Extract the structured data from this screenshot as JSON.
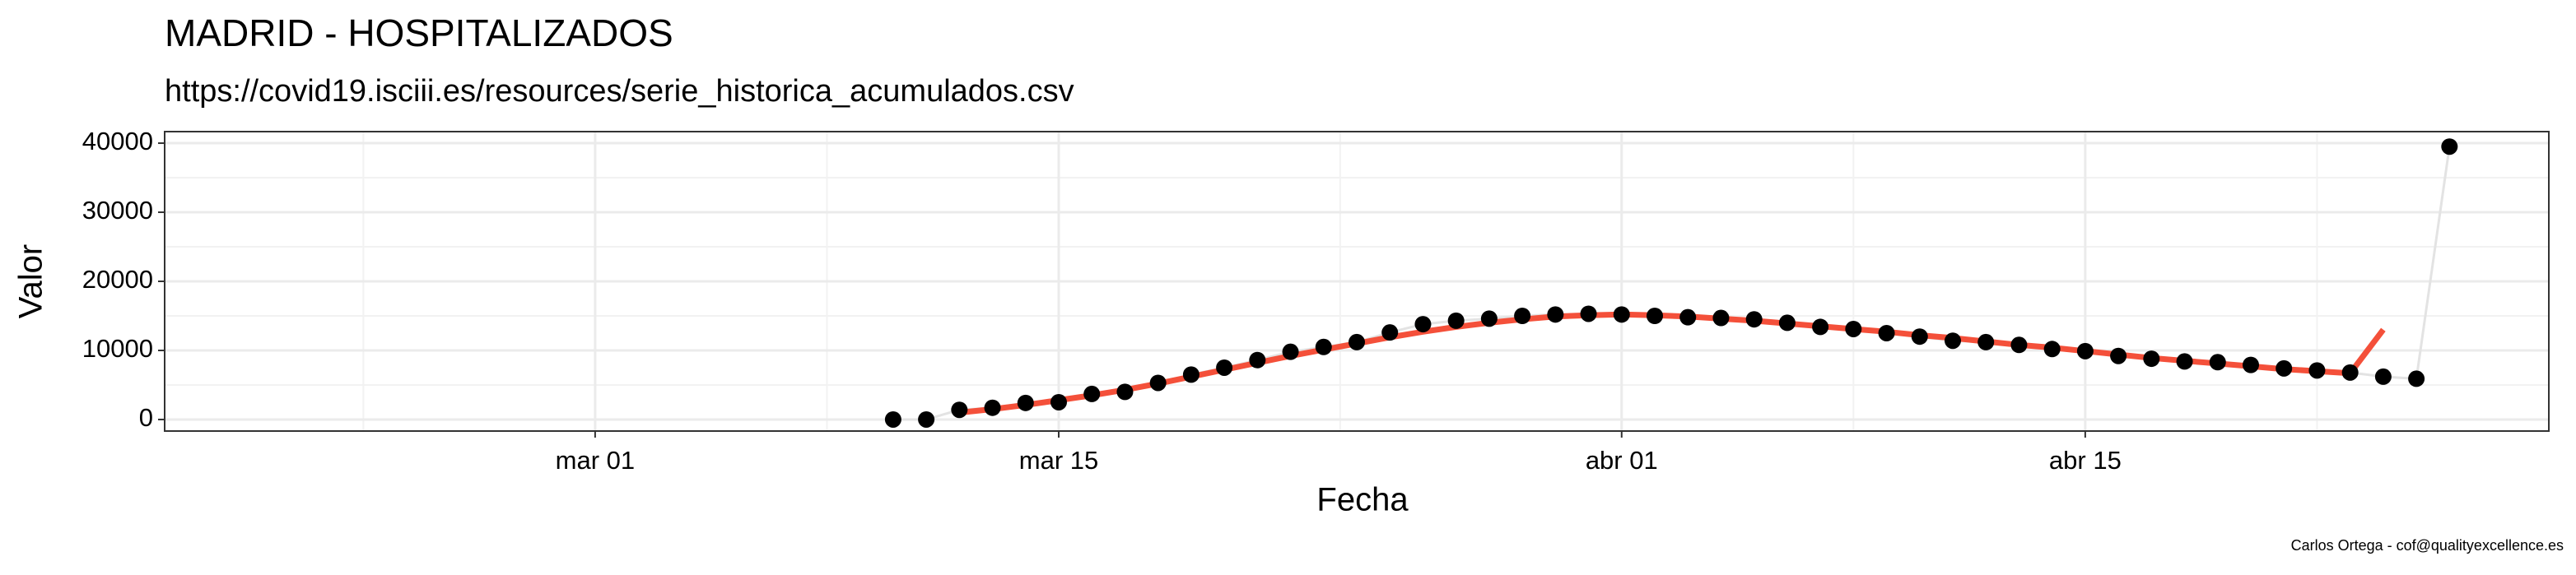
{
  "chart_data": {
    "type": "line",
    "title": "MADRID - HOSPITALIZADOS",
    "subtitle": "https://covid19.isciii.es/resources/serie_historica_acumulados.csv",
    "x_label": "Fecha",
    "y_label": "Valor",
    "caption": "Carlos Ortega - cof@qualityexcellence.es",
    "grid": true,
    "xlim": [
      "02-17",
      "04-29"
    ],
    "ylim": [
      -1670,
      41670
    ],
    "xticks": [
      {
        "value": "03-01",
        "label": "mar 01"
      },
      {
        "value": "03-15",
        "label": "mar 15"
      },
      {
        "value": "04-01",
        "label": "abr 01"
      },
      {
        "value": "04-15",
        "label": "abr 15"
      }
    ],
    "yticks": [
      0,
      10000,
      20000,
      30000,
      40000
    ],
    "series": [
      {
        "color": "#000000",
        "line_color": "#e3e3e3",
        "markers": true,
        "x": [
          "03-10",
          "03-11",
          "03-12",
          "03-13",
          "03-14",
          "03-15",
          "03-16",
          "03-17",
          "03-18",
          "03-19",
          "03-20",
          "03-21",
          "03-22",
          "03-23",
          "03-24",
          "03-25",
          "03-26",
          "03-27",
          "03-28",
          "03-29",
          "03-30",
          "03-31",
          "04-01",
          "04-02",
          "04-03",
          "04-04",
          "04-05",
          "04-06",
          "04-07",
          "04-08",
          "04-09",
          "04-10",
          "04-11",
          "04-12",
          "04-13",
          "04-14",
          "04-15",
          "04-16",
          "04-17",
          "04-18",
          "04-19",
          "04-20",
          "04-21",
          "04-22",
          "04-23",
          "04-24",
          "04-25",
          "04-26"
        ],
        "values": [
          0,
          0,
          1400,
          1700,
          2400,
          2500,
          3700,
          4000,
          5300,
          6500,
          7500,
          8600,
          9800,
          10500,
          11200,
          12600,
          13800,
          14300,
          14600,
          15000,
          15200,
          15300,
          15200,
          15000,
          14800,
          14700,
          14500,
          14000,
          13400,
          13100,
          12500,
          12000,
          11400,
          11200,
          10800,
          10200,
          9900,
          9200,
          8800,
          8400,
          8300,
          7900,
          7400,
          7100,
          6800,
          6200,
          5900,
          39500
        ]
      },
      {
        "color": "#f4503a",
        "line_color": "#f4503a",
        "markers": false,
        "x": [
          "03-12",
          "03-13",
          "03-14",
          "03-15",
          "03-16",
          "03-17",
          "03-18",
          "03-19",
          "03-20",
          "03-21",
          "03-22",
          "03-23",
          "03-24",
          "03-25",
          "03-26",
          "03-27",
          "03-28",
          "03-29",
          "03-30",
          "03-31",
          "04-01",
          "04-02",
          "04-03",
          "04-04",
          "04-05",
          "04-06",
          "04-07",
          "04-08",
          "04-09",
          "04-10",
          "04-11",
          "04-12",
          "04-13",
          "04-14",
          "04-15",
          "04-16",
          "04-17",
          "04-18",
          "04-19",
          "04-20",
          "04-21",
          "04-22",
          "04-23",
          "04-24"
        ],
        "values": [
          1000,
          1500,
          2100,
          2800,
          3500,
          4300,
          5200,
          6200,
          7200,
          8200,
          9200,
          10100,
          11000,
          11900,
          12700,
          13400,
          14000,
          14500,
          14900,
          15100,
          15200,
          15100,
          14900,
          14600,
          14300,
          13900,
          13500,
          13100,
          12700,
          12200,
          11800,
          11300,
          10800,
          10400,
          9900,
          9400,
          8900,
          8500,
          8100,
          7700,
          7300,
          7000,
          6700,
          13000
        ]
      }
    ]
  }
}
